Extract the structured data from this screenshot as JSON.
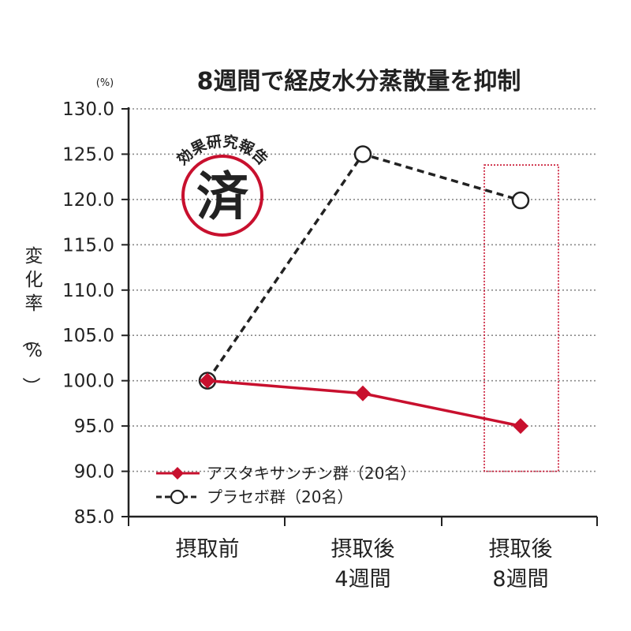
{
  "chart_data": {
    "type": "line",
    "title": "8週間で経皮水分蒸散量を抑制",
    "unit_label": "(%)",
    "ylabel": "変化率（%）",
    "ylim": [
      85.0,
      130.0
    ],
    "yticks": [
      "85.0",
      "90.0",
      "95.0",
      "100.0",
      "105.0",
      "110.0",
      "115.0",
      "120.0",
      "125.0",
      "130.0"
    ],
    "grid": true,
    "categories": [
      {
        "line1": "摂取前",
        "line2": ""
      },
      {
        "line1": "摂取後",
        "line2": "4週間"
      },
      {
        "line1": "摂取後",
        "line2": "8週間"
      }
    ],
    "series": [
      {
        "name": "アスタキサンチン群（20名）",
        "values": [
          100.0,
          98.6,
          95.0
        ],
        "color": "#c8102e",
        "style": "solid",
        "marker": "diamond"
      },
      {
        "name": "プラセボ群（20名）",
        "values": [
          100.0,
          125.0,
          119.9
        ],
        "color": "#222222",
        "style": "dashed",
        "marker": "circle"
      }
    ],
    "legend_position": "bottom-left",
    "highlight": {
      "category_index": 2,
      "y_range": [
        90.0,
        123.8
      ],
      "color": "#c8102e"
    },
    "stamp": {
      "arc_text": "効果研究報告",
      "center_char": "済",
      "color": "#c8102e"
    }
  }
}
